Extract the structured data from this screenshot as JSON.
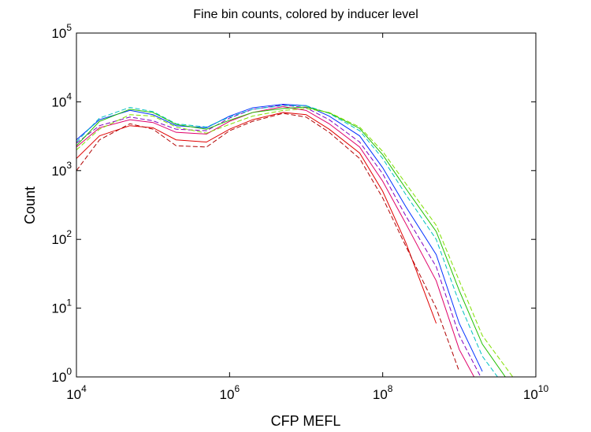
{
  "chart_data": {
    "type": "line",
    "title": "Fine bin counts, colored by inducer level",
    "xlabel": "CFP MEFL",
    "ylabel": "Count",
    "xscale": "log",
    "yscale": "log",
    "xlim": [
      10000,
      10000000000
    ],
    "ylim": [
      1,
      100000
    ],
    "xticks": [
      {
        "value": 10000,
        "label": "10^4"
      },
      {
        "value": 1000000,
        "label": "10^6"
      },
      {
        "value": 100000000,
        "label": "10^8"
      },
      {
        "value": 10000000000,
        "label": "10^10"
      }
    ],
    "yticks": [
      {
        "value": 1,
        "label": "10^0"
      },
      {
        "value": 10,
        "label": "10^1"
      },
      {
        "value": 100,
        "label": "10^2"
      },
      {
        "value": 1000,
        "label": "10^3"
      },
      {
        "value": 10000,
        "label": "10^4"
      },
      {
        "value": 100000,
        "label": "10^5"
      }
    ],
    "x": [
      10000,
      20000,
      50000,
      100000,
      200000,
      500000,
      1000000,
      2000000,
      5000000,
      10000000,
      20000000,
      50000000,
      100000000,
      200000000,
      500000000,
      1000000000,
      2000000000,
      5000000000
    ],
    "series": [
      {
        "color": "#e00000",
        "line_style": "solid",
        "values": [
          1500,
          3200,
          4500,
          4200,
          2800,
          2600,
          4000,
          5500,
          7000,
          6500,
          4000,
          1800,
          500,
          90,
          6,
          null,
          null,
          null
        ]
      },
      {
        "color": "#b00000",
        "line_style": "dashed",
        "values": [
          1000,
          2800,
          4800,
          4000,
          2300,
          2200,
          3800,
          5200,
          6800,
          6000,
          3600,
          1500,
          400,
          80,
          10,
          1.2,
          null,
          null
        ]
      },
      {
        "color": "#e0006a",
        "line_style": "solid",
        "values": [
          2200,
          4200,
          5500,
          5000,
          3600,
          3400,
          5200,
          7000,
          8500,
          7500,
          4800,
          2200,
          700,
          170,
          25,
          2.5,
          0.6,
          null
        ]
      },
      {
        "color": "#8000c0",
        "line_style": "dashed",
        "values": [
          2500,
          4500,
          6000,
          5300,
          4000,
          3800,
          5800,
          7800,
          9000,
          8200,
          5500,
          2600,
          900,
          220,
          40,
          4,
          0.9,
          null
        ]
      },
      {
        "color": "#0030ff",
        "line_style": "solid",
        "values": [
          2800,
          5500,
          7500,
          6500,
          4500,
          4200,
          6200,
          8200,
          9200,
          8800,
          6200,
          3200,
          1100,
          300,
          60,
          6,
          1.2,
          null
        ]
      },
      {
        "color": "#00c0c0",
        "line_style": "dashed",
        "values": [
          2600,
          5800,
          8300,
          7200,
          4800,
          4300,
          6000,
          7800,
          8800,
          8800,
          6800,
          3800,
          1500,
          450,
          100,
          12,
          2,
          0.5
        ]
      },
      {
        "color": "#20c000",
        "line_style": "solid",
        "values": [
          2300,
          5200,
          7800,
          7000,
          4700,
          4000,
          5400,
          7000,
          8000,
          8400,
          6900,
          4100,
          1700,
          550,
          130,
          18,
          3,
          0.7
        ]
      },
      {
        "color": "#80e000",
        "line_style": "dashed",
        "values": [
          2000,
          4000,
          6500,
          6200,
          4300,
          3500,
          4700,
          6200,
          7500,
          8000,
          7000,
          4300,
          1900,
          650,
          160,
          25,
          4,
          1
        ]
      }
    ]
  }
}
